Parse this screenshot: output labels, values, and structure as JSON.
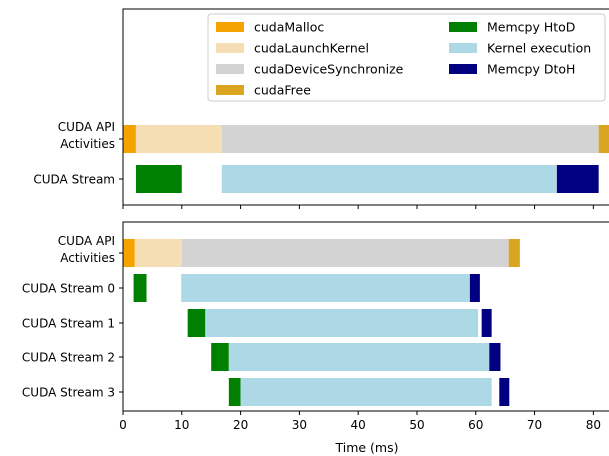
{
  "chart_data": {
    "type": "bar",
    "subtype": "gantt-timeline",
    "xlabel": "Time (ms)",
    "xlim": [
      0,
      83
    ],
    "xticks": [
      0,
      10,
      20,
      30,
      40,
      50,
      60,
      70,
      80
    ],
    "legend": {
      "placement": "top-right",
      "columns": 2,
      "entries": [
        {
          "key": "cudaMalloc",
          "label": "cudaMalloc",
          "color": "#F5A300"
        },
        {
          "key": "cudaLaunchKernel",
          "label": "cudaLaunchKernel",
          "color": "#F5DEB3"
        },
        {
          "key": "cudaDeviceSynchronize",
          "label": "cudaDeviceSynchronize",
          "color": "#D3D3D3"
        },
        {
          "key": "cudaFree",
          "label": "cudaFree",
          "color": "#DAA520"
        },
        {
          "key": "memcpy_htod",
          "label": "Memcpy HtoD",
          "color": "#008000"
        },
        {
          "key": "kernel",
          "label": "Kernel execution",
          "color": "#ADD8E6"
        },
        {
          "key": "memcpy_dtoh",
          "label": "Memcpy DtoH",
          "color": "#000080"
        }
      ]
    },
    "panels": [
      {
        "rows": [
          {
            "label": "CUDA API\nActivities",
            "segments": [
              {
                "kind": "cudaMalloc",
                "start": 0.0,
                "end": 2.2
              },
              {
                "kind": "cudaLaunchKernel",
                "start": 2.2,
                "end": 16.8
              },
              {
                "kind": "cudaDeviceSynchronize",
                "start": 16.8,
                "end": 80.9
              },
              {
                "kind": "cudaFree",
                "start": 80.9,
                "end": 83.0
              }
            ]
          },
          {
            "label": "CUDA Stream",
            "segments": [
              {
                "kind": "memcpy_htod",
                "start": 2.2,
                "end": 10.0
              },
              {
                "kind": "kernel",
                "start": 16.8,
                "end": 73.8
              },
              {
                "kind": "memcpy_dtoh",
                "start": 73.8,
                "end": 80.9
              }
            ]
          }
        ]
      },
      {
        "rows": [
          {
            "label": "CUDA API\nActivities",
            "segments": [
              {
                "kind": "cudaMalloc",
                "start": 0.0,
                "end": 2.0
              },
              {
                "kind": "cudaLaunchKernel",
                "start": 2.0,
                "end": 10.0
              },
              {
                "kind": "cudaDeviceSynchronize",
                "start": 10.0,
                "end": 65.6
              },
              {
                "kind": "cudaFree",
                "start": 65.6,
                "end": 67.5
              }
            ]
          },
          {
            "label": "CUDA Stream 0",
            "segments": [
              {
                "kind": "memcpy_htod",
                "start": 1.8,
                "end": 4.0
              },
              {
                "kind": "kernel",
                "start": 9.9,
                "end": 59.0
              },
              {
                "kind": "memcpy_dtoh",
                "start": 59.0,
                "end": 60.7
              }
            ]
          },
          {
            "label": "CUDA Stream 1",
            "segments": [
              {
                "kind": "memcpy_htod",
                "start": 11.0,
                "end": 14.0
              },
              {
                "kind": "kernel",
                "start": 14.0,
                "end": 60.4
              },
              {
                "kind": "memcpy_dtoh",
                "start": 61.0,
                "end": 62.7
              }
            ]
          },
          {
            "label": "CUDA Stream 2",
            "segments": [
              {
                "kind": "memcpy_htod",
                "start": 15.0,
                "end": 18.0
              },
              {
                "kind": "kernel",
                "start": 18.0,
                "end": 62.3
              },
              {
                "kind": "memcpy_dtoh",
                "start": 62.3,
                "end": 64.2
              }
            ]
          },
          {
            "label": "CUDA Stream 3",
            "segments": [
              {
                "kind": "memcpy_htod",
                "start": 18.0,
                "end": 20.0
              },
              {
                "kind": "kernel",
                "start": 20.0,
                "end": 62.7
              },
              {
                "kind": "memcpy_dtoh",
                "start": 64.0,
                "end": 65.7
              }
            ]
          }
        ]
      }
    ]
  }
}
